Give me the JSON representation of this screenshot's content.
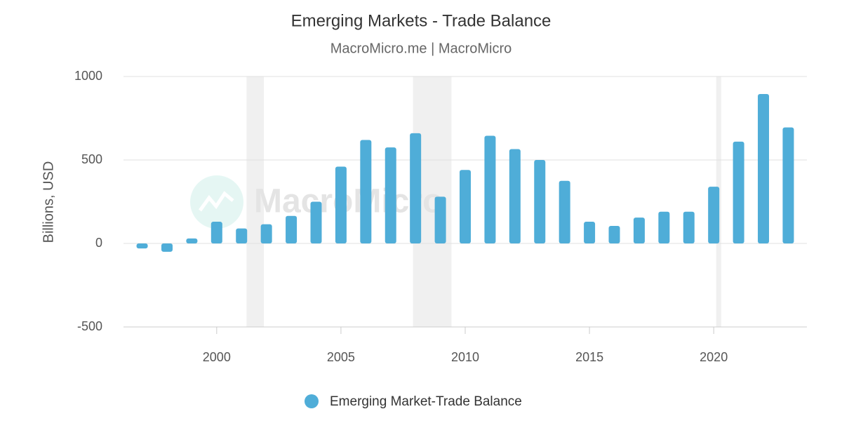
{
  "chart_data": {
    "type": "bar",
    "title": "Emerging Markets - Trade Balance",
    "subtitle": "MacroMicro.me | MacroMicro",
    "watermark": "MacroMicro",
    "y_label": "Billions, USD",
    "x": [
      1997,
      1998,
      1999,
      2000,
      2001,
      2002,
      2003,
      2004,
      2005,
      2006,
      2007,
      2008,
      2009,
      2010,
      2011,
      2012,
      2013,
      2014,
      2015,
      2016,
      2017,
      2018,
      2019,
      2020,
      2021,
      2022,
      2023
    ],
    "series": [
      {
        "name": "Emerging Market-Trade Balance",
        "color": "#4fadd8",
        "values": [
          -30,
          -50,
          30,
          130,
          90,
          115,
          165,
          250,
          460,
          620,
          575,
          660,
          280,
          440,
          645,
          565,
          500,
          375,
          130,
          105,
          155,
          190,
          190,
          340,
          610,
          895,
          695
        ]
      }
    ],
    "shaded_ranges": [
      [
        2001.2,
        2001.9
      ],
      [
        2007.9,
        2009.45
      ],
      [
        2020.1,
        2020.3
      ]
    ],
    "xlim": [
      1996.25,
      2023.75
    ],
    "xticks": [
      2000,
      2005,
      2010,
      2015,
      2020
    ],
    "ylim": [
      -500,
      1000
    ],
    "yticks": [
      -500,
      0,
      500,
      1000
    ],
    "grid": true
  }
}
